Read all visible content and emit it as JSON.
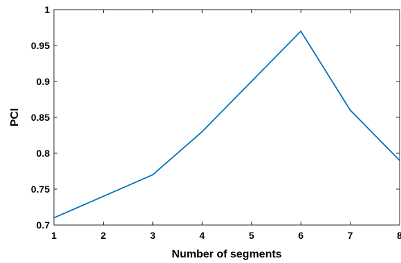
{
  "chart_data": {
    "type": "line",
    "title": "",
    "xlabel": "Number of segments",
    "ylabel": "PCI",
    "xlim": [
      1,
      8
    ],
    "ylim": [
      0.7,
      1
    ],
    "x_ticks": [
      1,
      2,
      3,
      4,
      5,
      6,
      7,
      8
    ],
    "y_ticks": [
      0.7,
      0.75,
      0.8,
      0.85,
      0.9,
      0.95,
      1
    ],
    "y_tick_labels": [
      "0.7",
      "0.75",
      "0.8",
      "0.85",
      "0.9",
      "0.95",
      "1"
    ],
    "grid": false,
    "legend": "none",
    "series": [
      {
        "color": "#0072BD",
        "x": [
          1,
          2,
          3,
          4,
          5,
          6,
          7,
          8
        ],
        "y": [
          0.71,
          0.74,
          0.77,
          0.83,
          0.9,
          0.97,
          0.86,
          0.79
        ]
      }
    ]
  }
}
